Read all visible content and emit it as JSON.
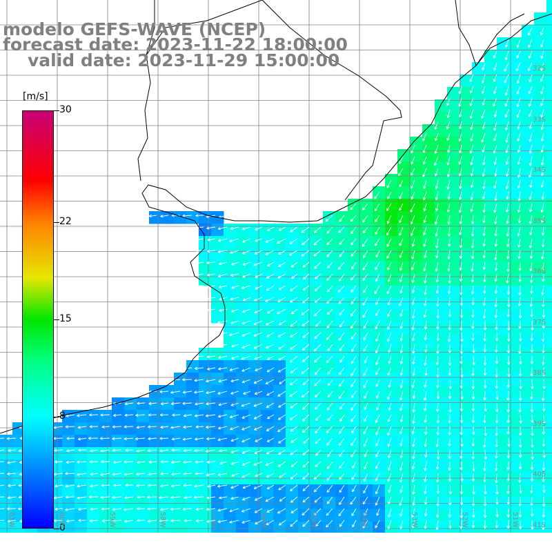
{
  "title": {
    "line1": "modelo GEFS-WAVE (NCEP)",
    "line2": "forecast date: 2023-11-22 18:00:00",
    "line3": "valid date: 2023-11-29 15:00:00"
  },
  "colorbar": {
    "unit": "[m/s]",
    "ticks": [
      {
        "label": "30",
        "value": 30
      },
      {
        "label": "22",
        "value": 22
      },
      {
        "label": "15",
        "value": 15
      },
      {
        "label": "8",
        "value": 8
      },
      {
        "label": "0",
        "value": 0
      }
    ],
    "range": [
      0,
      30
    ]
  },
  "lat_labels": [
    "32S",
    "33S",
    "34S",
    "35S",
    "36S",
    "37S",
    "38S",
    "39S",
    "40S",
    "41S"
  ],
  "lon_labels": [
    "61W",
    "60W",
    "59W",
    "58W",
    "57W",
    "56W",
    "55W",
    "54W",
    "53W",
    "52W",
    "51W"
  ],
  "colors": {
    "land": "#ffffff",
    "grid": "#808080",
    "coast": "#000000",
    "arrow": "#ffffff"
  }
}
